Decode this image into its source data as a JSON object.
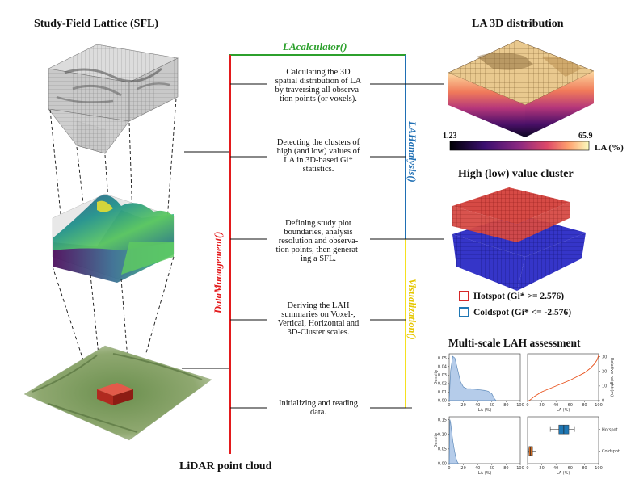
{
  "left": {
    "sfl_title": "Study-Field Lattice (SFL)",
    "lidar_title": "LiDAR point cloud"
  },
  "center": {
    "lacalculator_label": "LAcalculator()",
    "datamanagement_label": "DataManagement()",
    "lahanalysis_label": "LAHanalysis()",
    "visualization_label": "Visualization()",
    "steps": [
      {
        "lines": [
          "Calculating the 3D",
          "spatial distribution of LA",
          "by traversing all observa-",
          "tion points (or voxels)."
        ]
      },
      {
        "lines": [
          "Detecting the clusters of",
          "high (and low) values of",
          "LA in 3D-based Gi*",
          "statistics."
        ]
      },
      {
        "lines": [
          "Defining study plot",
          "boundaries, analysis",
          "resolution and observa-",
          "tion points, then generat-",
          "ing a SFL."
        ]
      },
      {
        "lines": [
          "Deriving the LAH",
          "summaries on Voxel-,",
          "Vertical, Horizontal and",
          "3D-Cluster scales."
        ]
      },
      {
        "lines": [
          "Initializing and reading",
          "data."
        ]
      }
    ]
  },
  "right": {
    "la3d_title": "LA 3D distribution",
    "colorbar": {
      "min": "1.23",
      "max": "65.9",
      "label": "LA (%)"
    },
    "cluster_title": "High (low) value cluster",
    "hotspot_label": "Hotspot (Gi* >= 2.576)",
    "coldspot_label": "Coldspot (Gi* <= -2.576)",
    "hotspot_color": "#d62728",
    "coldspot_color": "#1f77b4",
    "multiscale_title": "Multi-scale LAH assessment"
  },
  "colors": {
    "green": "#2ca02c",
    "red": "#e31a1c",
    "blue": "#1f6fb4",
    "yellow": "#f5e11f"
  },
  "chart_data": [
    {
      "type": "area",
      "xlabel": "LA (%)",
      "ylabel": "Density",
      "xticks": [
        "0",
        "20",
        "40",
        "60",
        "80",
        "100"
      ],
      "yticks": [
        "0.00",
        "0.01",
        "0.02",
        "0.03",
        "0.04",
        "0.05"
      ],
      "xlim": [
        0,
        100
      ],
      "ylim": [
        0,
        0.055
      ],
      "x": [
        0,
        2,
        5,
        8,
        12,
        16,
        20,
        25,
        30,
        40,
        50,
        55,
        60,
        63,
        66
      ],
      "y": [
        0.0,
        0.035,
        0.052,
        0.05,
        0.036,
        0.022,
        0.016,
        0.014,
        0.014,
        0.013,
        0.012,
        0.011,
        0.008,
        0.003,
        0.0
      ]
    },
    {
      "type": "line",
      "xlabel": "LA (%)",
      "ylabel": "Relative height (m)",
      "xticks": [
        "0",
        "20",
        "40",
        "60",
        "80",
        "100"
      ],
      "yticks": [
        "0",
        "10",
        "20",
        "30"
      ],
      "xlim": [
        0,
        100
      ],
      "ylim": [
        0,
        32
      ],
      "x": [
        2,
        5,
        10,
        20,
        30,
        40,
        50,
        60,
        70,
        80,
        88,
        94,
        98,
        100
      ],
      "y": [
        0,
        1,
        3,
        6,
        8,
        10,
        12,
        14,
        16.5,
        19,
        22,
        25,
        28,
        31
      ]
    },
    {
      "type": "area",
      "xlabel": "LA (%)",
      "ylabel": "Density",
      "xticks": [
        "0",
        "20",
        "40",
        "60",
        "80",
        "100"
      ],
      "yticks": [
        "0.00",
        "0.05",
        "0.10",
        "0.15"
      ],
      "xlim": [
        0,
        100
      ],
      "ylim": [
        0,
        0.16
      ],
      "x": [
        0,
        1,
        2,
        3,
        5,
        7,
        9,
        11,
        13
      ],
      "y": [
        0.0,
        0.15,
        0.14,
        0.12,
        0.08,
        0.05,
        0.025,
        0.008,
        0.0
      ]
    },
    {
      "type": "box",
      "xlabel": "LA (%)",
      "xticks": [
        "0",
        "20",
        "40",
        "60",
        "80",
        "100"
      ],
      "xlim": [
        0,
        100
      ],
      "categories": [
        "Hotspot",
        "Coldspot"
      ],
      "boxes": [
        {
          "name": "Hotspot",
          "whisker_low": 32,
          "q1": 44,
          "median": 51,
          "q3": 58,
          "whisker_high": 66,
          "color": "#1f77b4"
        },
        {
          "name": "Coldspot",
          "whisker_low": 1,
          "q1": 2,
          "median": 4,
          "q3": 7,
          "whisker_high": 12,
          "color": "#d2691e"
        }
      ]
    }
  ]
}
